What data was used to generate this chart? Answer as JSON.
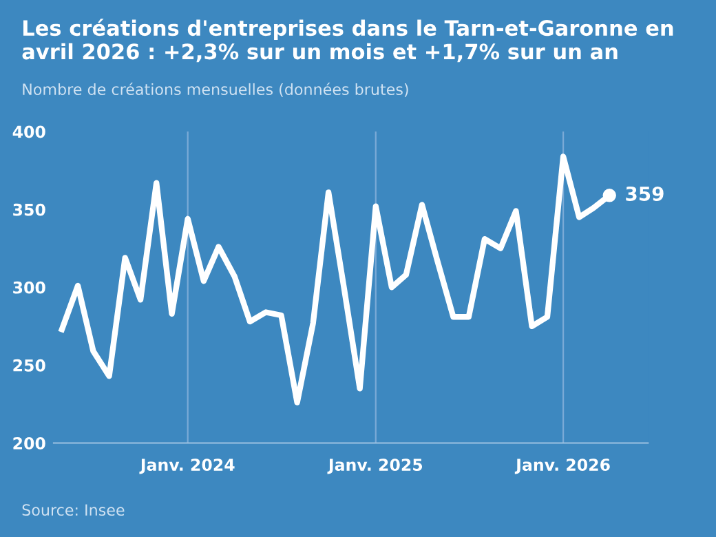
{
  "chart_data": {
    "type": "line",
    "title": "Les créations d'entreprises dans le Tarn-et-Garonne en avril 2026 : +2,3% sur un mois et +1,7% sur un an",
    "subtitle": "Nombre de créations mensuelles (données brutes)",
    "annotations": [
      "Source: Insee"
    ],
    "x": [
      "2023-05",
      "2023-06",
      "2023-07",
      "2023-08",
      "2023-09",
      "2023-10",
      "2023-11",
      "2023-12",
      "2024-01",
      "2024-02",
      "2024-03",
      "2024-04",
      "2024-05",
      "2024-06",
      "2024-07",
      "2024-08",
      "2024-09",
      "2024-10",
      "2024-11",
      "2024-12",
      "2025-01",
      "2025-02",
      "2025-03",
      "2025-04",
      "2025-05",
      "2025-06",
      "2025-07",
      "2025-08",
      "2025-09",
      "2025-10",
      "2025-11",
      "2025-12",
      "2026-01",
      "2026-02",
      "2026-03",
      "2026-04"
    ],
    "series": [
      {
        "color": "#ffffff",
        "values": [
          273,
          301,
          259,
          243,
          319,
          292,
          367,
          283,
          344,
          304,
          326,
          307,
          278,
          284,
          282,
          226,
          277,
          361,
          298,
          235,
          352,
          300,
          308,
          353,
          317,
          281,
          281,
          331,
          325,
          349,
          275,
          281,
          384,
          345,
          351,
          359
        ],
        "value_labels": [
          null,
          null,
          null,
          null,
          null,
          null,
          null,
          null,
          null,
          null,
          null,
          null,
          null,
          null,
          null,
          null,
          null,
          null,
          null,
          null,
          null,
          null,
          null,
          null,
          null,
          null,
          null,
          null,
          null,
          null,
          null,
          null,
          null,
          null,
          null,
          "359"
        ]
      }
    ],
    "xticks": [
      {
        "value": "2024-01",
        "label": "Janv. 2024"
      },
      {
        "value": "2025-01",
        "label": "Janv. 2025"
      },
      {
        "value": "2026-01",
        "label": "Janv. 2026"
      }
    ],
    "ylim": [
      200,
      400
    ],
    "yticks": [
      200,
      250,
      300,
      350,
      400
    ],
    "xlim": [
      "2023-04-15",
      "2026-06-15"
    ],
    "grid": "x",
    "legend": false,
    "marker": "none",
    "line_style": "solid"
  }
}
